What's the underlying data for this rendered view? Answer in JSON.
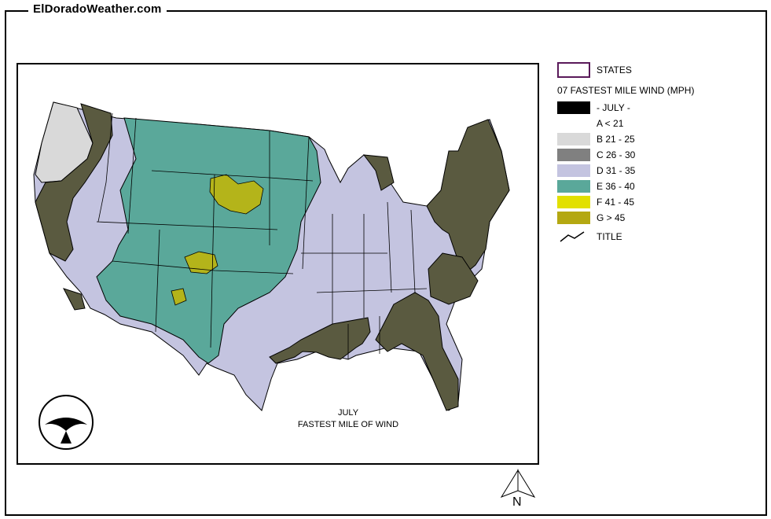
{
  "header": {
    "site_title": "ElDoradoWeather.com"
  },
  "map": {
    "caption_line1": "JULY",
    "caption_line2": "FASTEST MILE OF WIND",
    "colors": {
      "ocean": "#ffffff",
      "state_border": "#000000",
      "B": "#d9d9d9",
      "C_dark": "#5a5a40",
      "D": "#c4c4e0",
      "E": "#5aa89a",
      "F": "#e2e000",
      "G": "#b4b41a"
    }
  },
  "legend": {
    "states_label": "STATES",
    "layer_title": "07 FASTEST MILE WIND (MPH)",
    "items": [
      {
        "label": "- JULY -",
        "color": "#000000"
      },
      {
        "label": "A < 21",
        "color": "#ffffff"
      },
      {
        "label": "B 21 - 25",
        "color": "#d9d9d9"
      },
      {
        "label": "C 26 - 30",
        "color": "#808080"
      },
      {
        "label": "D 31 - 35",
        "color": "#c4c4e0"
      },
      {
        "label": "E 36 - 40",
        "color": "#5aa89a"
      },
      {
        "label": "F 41 - 45",
        "color": "#e2e000"
      },
      {
        "label": "G > 45",
        "color": "#b4a812"
      }
    ],
    "title_label": "TITLE"
  },
  "compass": {
    "label": "N"
  },
  "logo": {
    "text": "NOAA",
    "icon": "noaa-bird-logo"
  }
}
